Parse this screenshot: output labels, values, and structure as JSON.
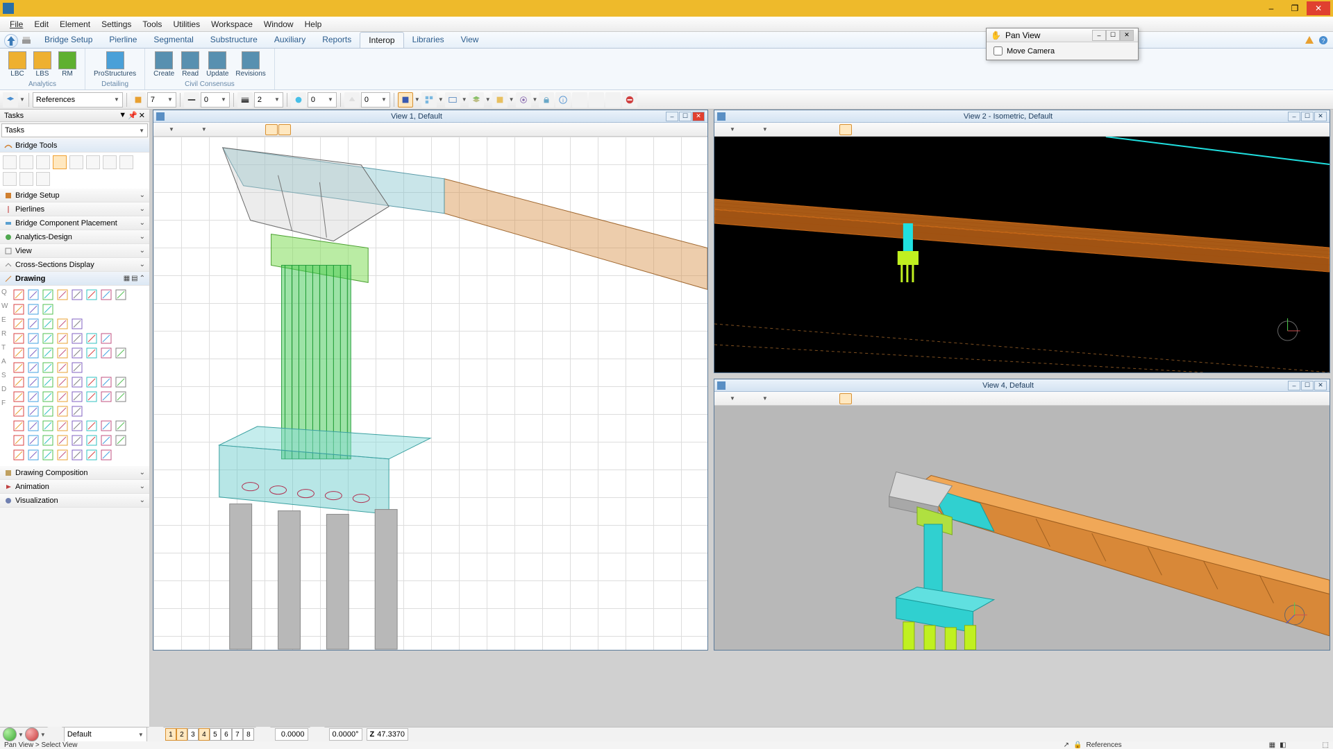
{
  "window": {
    "min": "–",
    "max": "❐",
    "close": "✕"
  },
  "menu": [
    "File",
    "Edit",
    "Element",
    "Settings",
    "Tools",
    "Utilities",
    "Workspace",
    "Window",
    "Help"
  ],
  "ribbon": {
    "tabs": [
      "Bridge Setup",
      "Pierline",
      "Segmental",
      "Substructure",
      "Auxiliary",
      "Reports",
      "Interop",
      "Libraries",
      "View"
    ],
    "active": 6,
    "groups": {
      "analytics": {
        "label": "Analytics",
        "items": [
          "LBC",
          "LBS",
          "RM"
        ],
        "colors": [
          "#eeb030",
          "#eeb030",
          "#5fb030"
        ]
      },
      "detailing": {
        "label": "Detailing",
        "item": "ProStructures",
        "color": "#4aa0d8"
      },
      "civil": {
        "label": "Civil Consensus",
        "items": [
          "Create",
          "Read",
          "Update",
          "Revisions"
        ],
        "color": "#5890b0"
      }
    }
  },
  "toolbar2": {
    "refs_label": "References",
    "spin1": "7",
    "spin2": "0",
    "spin3": "2",
    "spin4": "0",
    "spin5": "0"
  },
  "pan_dialog": {
    "title": "Pan View",
    "checkbox_label": "Move Camera"
  },
  "tasks": {
    "title": "Tasks",
    "dropdown": "Tasks",
    "bridge_tools": "Bridge Tools",
    "sections": [
      "Bridge Setup",
      "Pierlines",
      "Bridge Component Placement",
      "Analytics-Design",
      "View",
      "Cross-Sections Display"
    ],
    "drawing": "Drawing",
    "bottom": [
      "Drawing Composition",
      "Animation",
      "Visualization"
    ]
  },
  "views": {
    "v1": {
      "title": "View 1, Default"
    },
    "v2": {
      "title": "View 2 - Isometric, Default"
    },
    "v4": {
      "title": "View 4, Default"
    }
  },
  "status": {
    "default_label": "Default",
    "view_nums": [
      "1",
      "2",
      "3",
      "4",
      "5",
      "6",
      "7",
      "8"
    ],
    "active_nums": [
      0,
      1,
      3
    ],
    "coords": {
      "blank": "0.0000",
      "ang": "0.0000°",
      "z": "47.3370"
    },
    "prompt": "Pan View > Select View",
    "refs": "References"
  },
  "colors": {
    "deck": "#d89048",
    "deck_trans": "rgba(216,144,72,0.55)",
    "pier": "#3ac050",
    "pier_trans": "rgba(58,192,80,0.55)",
    "cap": "#30d0d0",
    "cap_trans": "rgba(80,200,200,0.55)",
    "foot": "#60c8c8",
    "foot_trans": "rgba(96,200,200,0.45)",
    "pile": "#b0b0b0",
    "black": "#000",
    "orange": "#f08020",
    "cyan": "#20e0e0",
    "lime": "#c0f020"
  }
}
